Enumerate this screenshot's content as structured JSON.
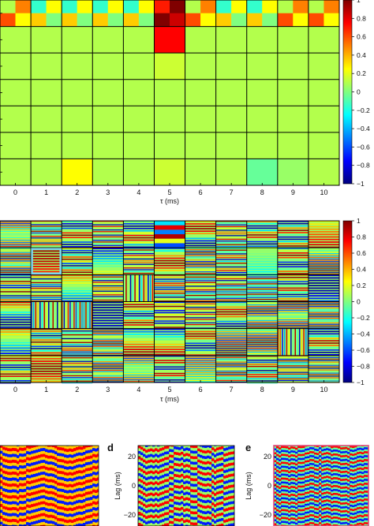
{
  "chart_data": [
    {
      "type": "heatmap",
      "panel": "top",
      "xlabel": "τ (ms)",
      "x_ticks": [
        "0",
        "1",
        "2",
        "3",
        "4",
        "5",
        "6",
        "7",
        "8",
        "9",
        "10"
      ],
      "grid_cols": 11,
      "grid_rows": 7,
      "colorbar": {
        "range": [
          -1,
          1
        ],
        "ticks": [
          "1",
          "0.8",
          "0.6",
          "0.4",
          "0.2",
          "0",
          "−0.2",
          "−0.4",
          "−0.6",
          "−0.8",
          "−1"
        ]
      },
      "block_values": [
        [
          0.35,
          0.1,
          0.1,
          0.1,
          0.1,
          0.95,
          0.35,
          0.1,
          0.1,
          0.35,
          0.35
        ],
        [
          0.1,
          0.1,
          0.1,
          0.1,
          0.1,
          0.75,
          0.1,
          0.1,
          0.1,
          0.1,
          0.1
        ],
        [
          0.1,
          0.1,
          0.1,
          0.1,
          0.1,
          0.15,
          0.1,
          0.1,
          0.1,
          0.1,
          0.1
        ],
        [
          0.1,
          0.1,
          0.1,
          0.1,
          0.1,
          0.1,
          0.1,
          0.1,
          0.1,
          0.1,
          0.1
        ],
        [
          0.1,
          0.1,
          0.1,
          0.1,
          0.1,
          0.1,
          0.1,
          0.1,
          0.1,
          0.1,
          0.1
        ],
        [
          0.1,
          0.1,
          0.1,
          0.1,
          0.1,
          0.1,
          0.1,
          0.1,
          0.1,
          0.1,
          0.1
        ],
        [
          0.1,
          0.1,
          0.25,
          0.1,
          0.1,
          0.15,
          0.1,
          0.1,
          -0.05,
          0.05,
          0.1
        ]
      ]
    },
    {
      "type": "heatmap",
      "panel": "middle",
      "xlabel": "τ (ms)",
      "x_ticks": [
        "0",
        "1",
        "2",
        "3",
        "4",
        "5",
        "6",
        "7",
        "8",
        "9",
        "10"
      ],
      "grid_cols": 11,
      "grid_rows": 6,
      "highlighted_block": {
        "row": 1,
        "col": 1
      },
      "colorbar": {
        "range": [
          -1,
          1
        ],
        "ticks": [
          "1",
          "0.8",
          "0.6",
          "0.4",
          "0.2",
          "0",
          "−0.2",
          "−0.4",
          "−0.6",
          "−0.8",
          "−1"
        ]
      }
    },
    {
      "type": "heatmap",
      "panel": "c",
      "y_ticks": []
    },
    {
      "type": "heatmap",
      "panel": "d",
      "panel_label": "d",
      "ylabel": "Lag (ms)",
      "y_ticks": [
        "20",
        "0",
        "−20"
      ]
    },
    {
      "type": "heatmap",
      "panel": "e",
      "panel_label": "e",
      "ylabel": "Lag (ms)",
      "y_ticks": [
        "20",
        "0",
        "−20"
      ]
    }
  ],
  "colors": {
    "jet_stops": [
      "#00007f",
      "#0000ff",
      "#007fff",
      "#00ffff",
      "#7fff7f",
      "#ffff00",
      "#ff7f00",
      "#ff0000",
      "#7f0000"
    ],
    "highlight_box": "#7fd6ee",
    "panel_e_frame": "#e0497a"
  }
}
